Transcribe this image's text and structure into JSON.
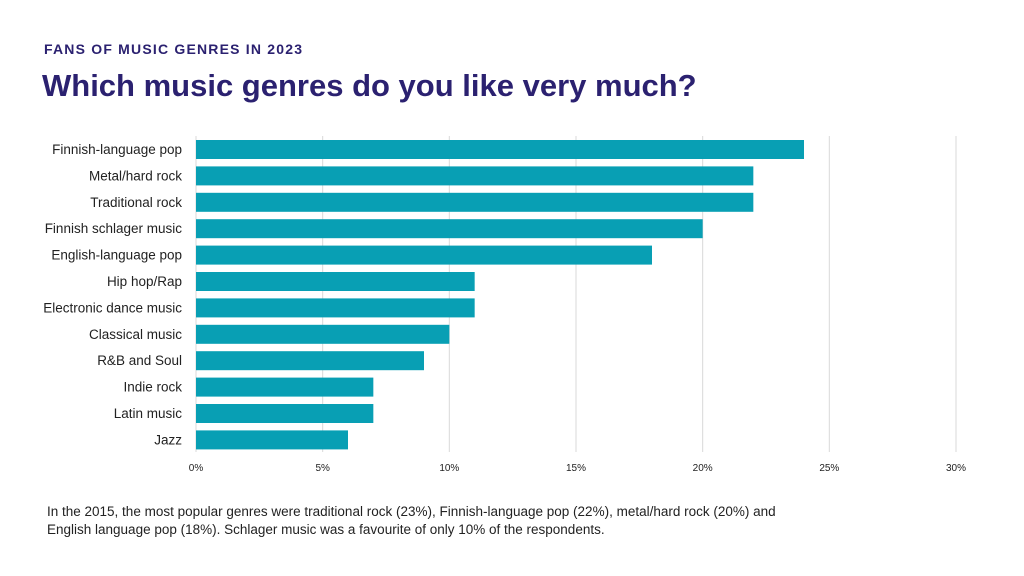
{
  "header": {
    "kicker": "FANS OF MUSIC GENRES IN 2023",
    "title": "Which music genres do you like very much?"
  },
  "footnote": {
    "line1": "In the 2015, the most popular genres were traditional rock (23%), Finnish-language pop (22%), metal/hard rock (20%) and",
    "line2": "English language pop (18%). Schlager music was a favourite of only 10% of the respondents."
  },
  "colors": {
    "bar": "#089fb4",
    "grid": "#d9d9d9",
    "title": "#2b2170",
    "text": "#222222"
  },
  "chart_data": {
    "type": "bar",
    "orientation": "horizontal",
    "categories": [
      "Finnish-language pop",
      "Metal/hard rock",
      "Traditional rock",
      "Finnish schlager music",
      "English-language pop",
      "Hip hop/Rap",
      "Electronic dance music",
      "Classical music",
      "R&B and Soul",
      "Indie rock",
      "Latin music",
      "Jazz"
    ],
    "values": [
      24,
      22,
      22,
      20,
      18,
      11,
      11,
      10,
      9,
      7,
      7,
      6
    ],
    "unit": "%",
    "xlim": [
      0,
      30
    ],
    "xticks": [
      0,
      5,
      10,
      15,
      20,
      25,
      30
    ],
    "xtick_labels": [
      "0%",
      "5%",
      "10%",
      "15%",
      "20%",
      "25%",
      "30%"
    ],
    "grid": true,
    "legend": "none"
  }
}
